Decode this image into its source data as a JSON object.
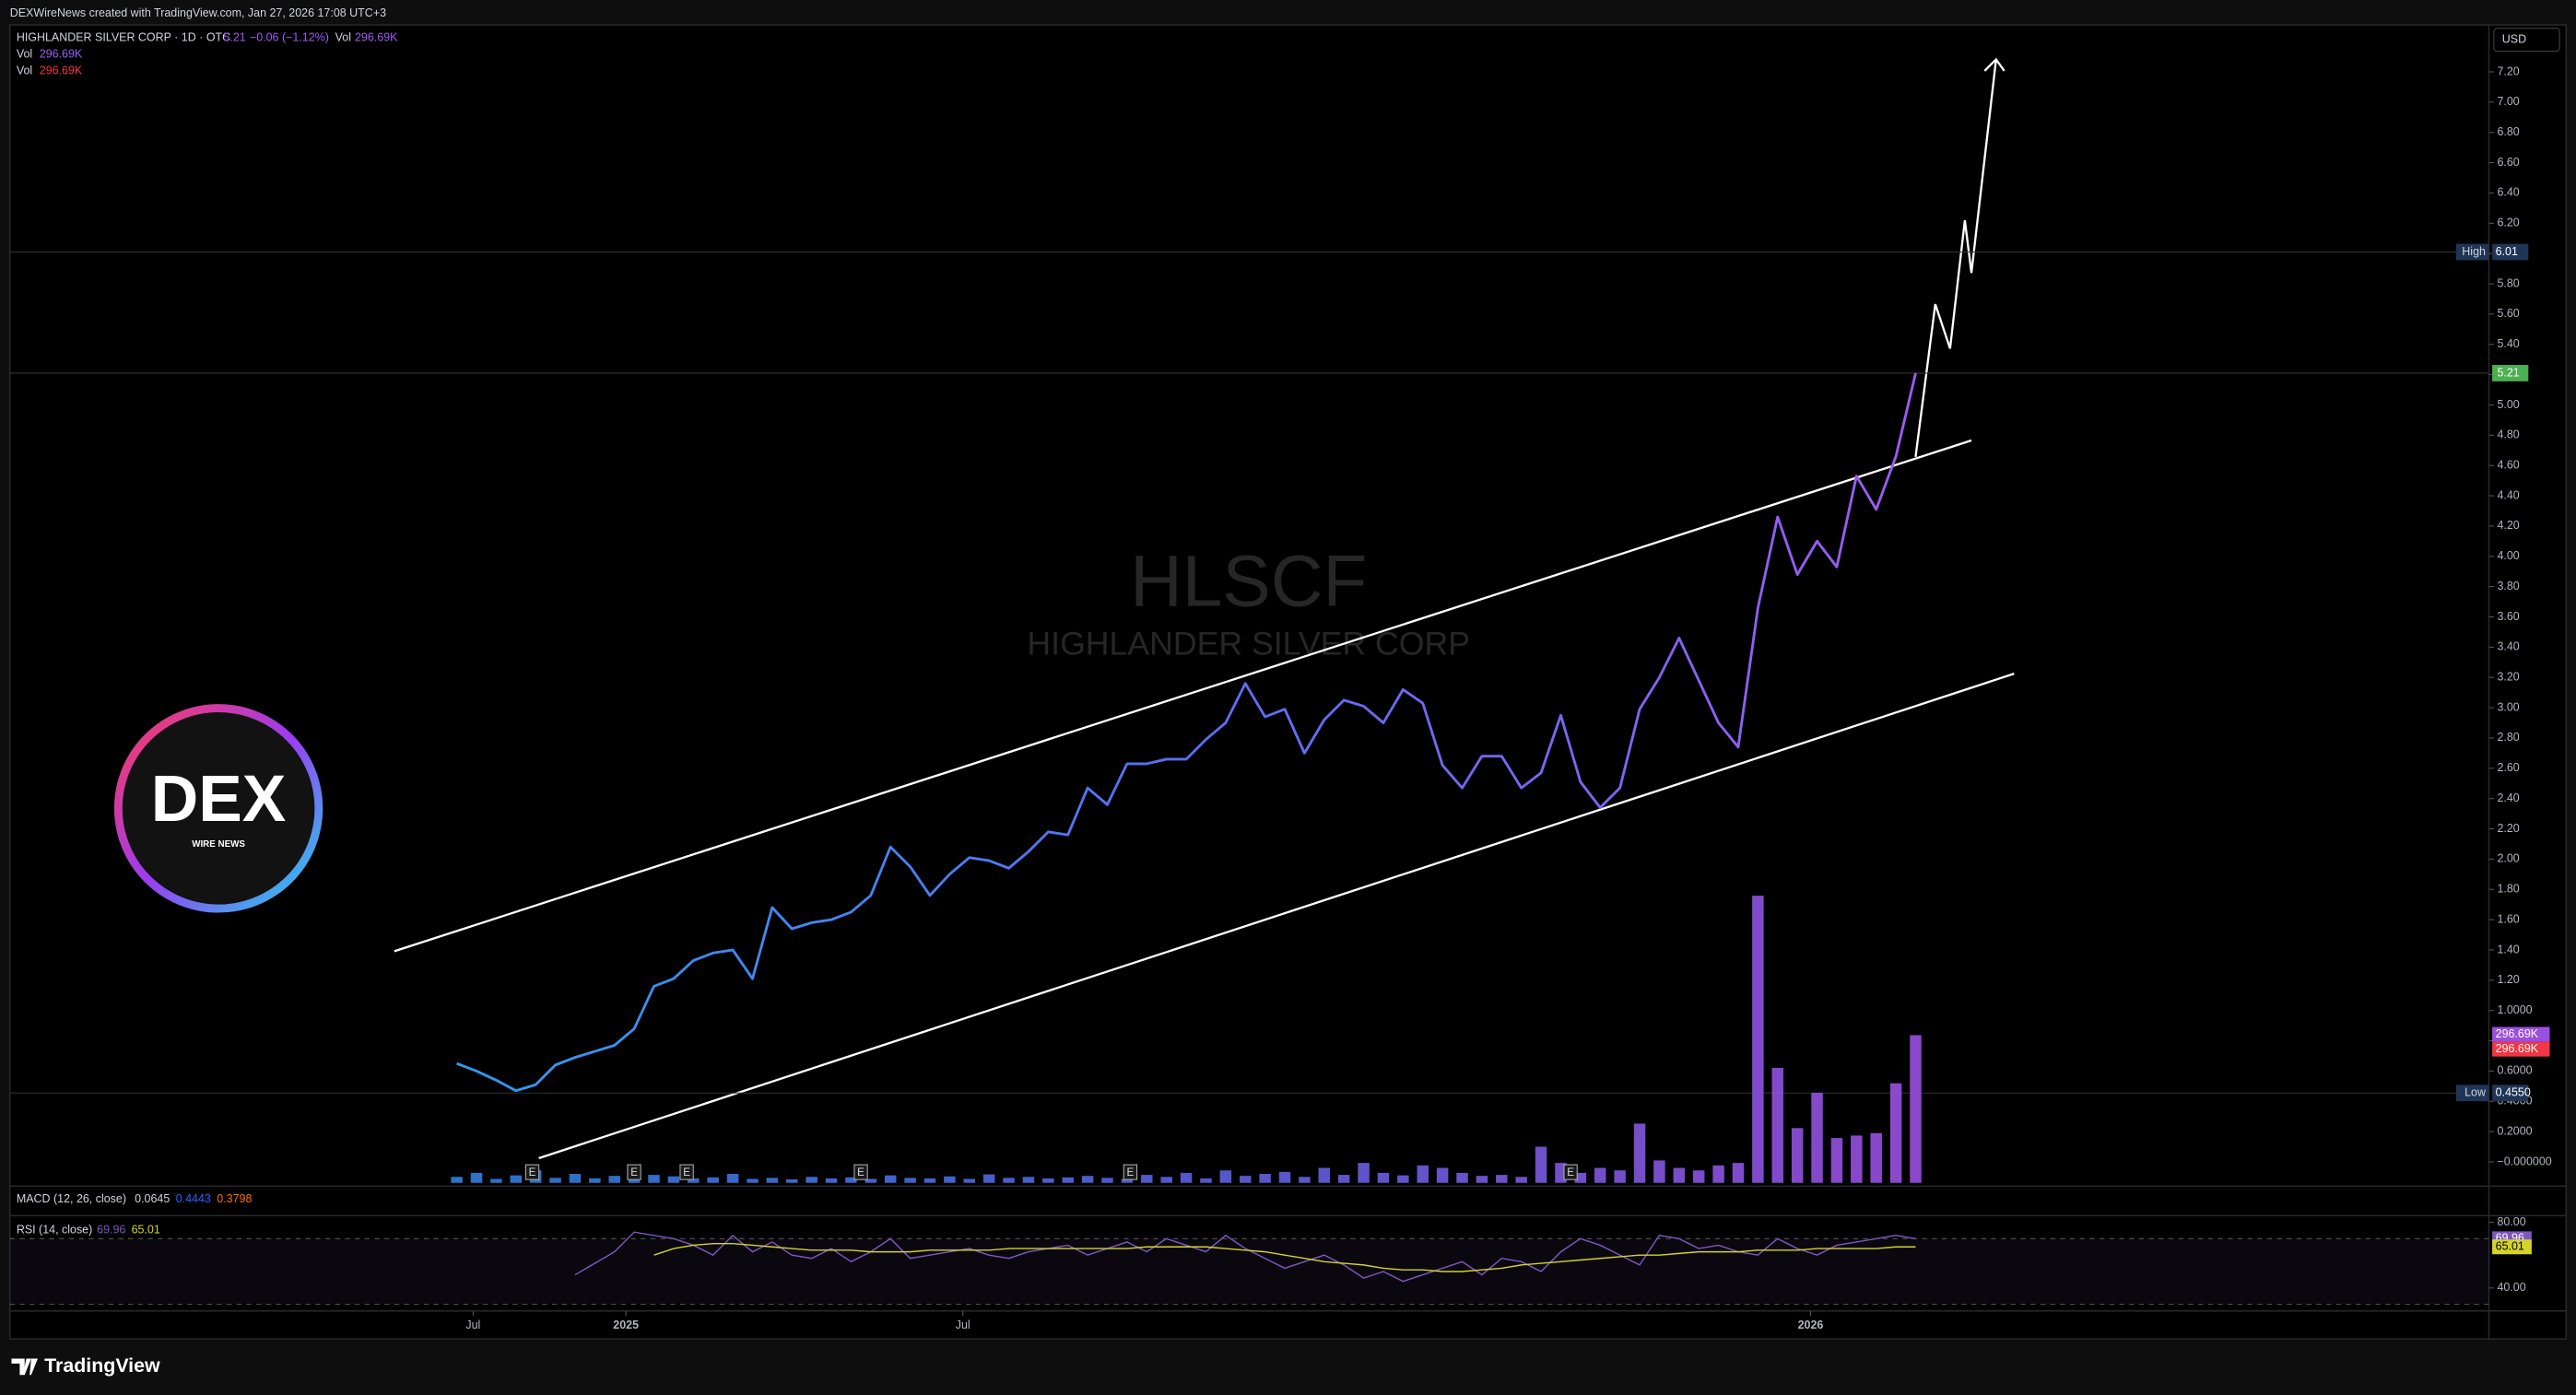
{
  "caption": "DEXWireNews created with TradingView.com, Jan 27, 2026 17:08 UTC+3",
  "watermark": {
    "symbol": "HLSCF",
    "name": "HIGHLANDER SILVER CORP"
  },
  "logo": {
    "title": "DEX",
    "subtitle": "WIRE NEWS"
  },
  "footer": "TradingView",
  "chart_data": [
    {
      "type": "line",
      "currency": "USD",
      "series": [
        {
          "name": "HIGHLANDER SILVER CORP · 1D · OTC",
          "change": "−0.06 (−1.12%)",
          "colors": [
            "#2f9bf0",
            "#5a6ef2",
            "#9d5cf2"
          ],
          "values": [
            0.65,
            0.6,
            0.54,
            0.47,
            0.51,
            0.64,
            0.69,
            0.73,
            0.77,
            0.88,
            1.16,
            1.21,
            1.33,
            1.38,
            1.4,
            1.21,
            1.68,
            1.54,
            1.58,
            1.6,
            1.65,
            1.76,
            2.08,
            1.95,
            1.76,
            1.9,
            2.01,
            1.99,
            1.94,
            2.05,
            2.18,
            2.16,
            2.47,
            2.36,
            2.63,
            2.63,
            2.66,
            2.66,
            2.79,
            2.9,
            3.16,
            2.94,
            2.99,
            2.7,
            2.92,
            3.05,
            3.01,
            2.9,
            3.12,
            3.03,
            2.62,
            2.47,
            2.68,
            2.68,
            2.47,
            2.57,
            2.95,
            2.51,
            2.34,
            2.47,
            2.99,
            3.2,
            3.46,
            3.18,
            2.9,
            2.74,
            3.66,
            4.26,
            3.88,
            4.1,
            3.93,
            4.53,
            4.31,
            4.66,
            5.21
          ]
        }
      ],
      "xlim": [
        -22.67,
        103.08
      ],
      "xticks": [
        {
          "value": 0.83,
          "label": "Jul"
        },
        {
          "value": 8.58,
          "label": "2025"
        },
        {
          "value": 25.67,
          "label": "Jul"
        },
        {
          "value": 68.67,
          "label": "2026"
        }
      ],
      "ylim": [
        -0.16,
        7.51
      ],
      "yticks": [
        {
          "value": 7.2,
          "label": "7.20"
        },
        {
          "value": 7,
          "label": "7.00"
        },
        {
          "value": 6.8,
          "label": "6.80"
        },
        {
          "value": 6.6,
          "label": "6.60"
        },
        {
          "value": 6.4,
          "label": "6.40"
        },
        {
          "value": 6.2,
          "label": "6.20"
        },
        {
          "value": 6,
          "label": "6.00"
        },
        {
          "value": 5.8,
          "label": "5.80"
        },
        {
          "value": 5.6,
          "label": "5.60"
        },
        {
          "value": 5.4,
          "label": "5.40"
        },
        {
          "value": 5.2,
          "label": "5.20"
        },
        {
          "value": 5,
          "label": "5.00"
        },
        {
          "value": 4.8,
          "label": "4.80"
        },
        {
          "value": 4.6,
          "label": "4.60"
        },
        {
          "value": 4.4,
          "label": "4.40"
        },
        {
          "value": 4.2,
          "label": "4.20"
        },
        {
          "value": 4,
          "label": "4.00"
        },
        {
          "value": 3.8,
          "label": "3.80"
        },
        {
          "value": 3.6,
          "label": "3.60"
        },
        {
          "value": 3.4,
          "label": "3.40"
        },
        {
          "value": 3.2,
          "label": "3.20"
        },
        {
          "value": 3,
          "label": "3.00"
        },
        {
          "value": 2.8,
          "label": "2.80"
        },
        {
          "value": 2.6,
          "label": "2.60"
        },
        {
          "value": 2.4,
          "label": "2.40"
        },
        {
          "value": 2.2,
          "label": "2.20"
        },
        {
          "value": 2,
          "label": "2.00"
        },
        {
          "value": 1.8,
          "label": "1.80"
        },
        {
          "value": 1.6,
          "label": "1.60"
        },
        {
          "value": 1.4,
          "label": "1.40"
        },
        {
          "value": 1.2,
          "label": "1.20"
        },
        {
          "value": 1,
          "label": "1.0000"
        },
        {
          "value": 0.8,
          "label": "0.8000"
        },
        {
          "value": 0.6,
          "label": "0.6000"
        },
        {
          "value": 0.4,
          "label": "0.4000"
        },
        {
          "value": 0.2,
          "label": "0.2000"
        },
        {
          "value": 0,
          "label": "−0.000000"
        }
      ],
      "high": {
        "label": "High",
        "value": 6.01
      },
      "low": {
        "label": "Low",
        "value": 0.455,
        "value_label": "0.4550"
      },
      "earnings_markers": [
        "E",
        "E",
        "E",
        "E",
        "E",
        "E"
      ]
    },
    {
      "type": "bar",
      "series": [
        {
          "name": "Vol",
          "colors": [
            "#2f7fe0",
            "#5a62e0",
            "#9b4fe0"
          ],
          "second_color": "#f23645",
          "values": [
            12000,
            20000,
            8000,
            15000,
            25000,
            10000,
            18000,
            9000,
            14000,
            22000,
            16000,
            13000,
            9000,
            11000,
            18000,
            8000,
            10000,
            7000,
            12000,
            9000,
            11000,
            8000,
            15000,
            10000,
            9000,
            13000,
            8000,
            17000,
            10000,
            12000,
            9000,
            11000,
            14000,
            10000,
            8000,
            16000,
            12000,
            20000,
            9000,
            25000,
            14000,
            18000,
            22000,
            12000,
            30000,
            16000,
            40000,
            20000,
            15000,
            35000,
            30000,
            20000,
            14000,
            16000,
            12000,
            72600,
            40000,
            20000,
            30000,
            25000,
            119000,
            45000,
            30000,
            25000,
            35000,
            40000,
            577000,
            231000,
            110000,
            181000,
            90000,
            95000,
            100000,
            200000,
            296690
          ],
          "value_labels": [
            null,
            null,
            null,
            null,
            null,
            null,
            null,
            null,
            null,
            null,
            null,
            null,
            null,
            null,
            null,
            null,
            null,
            null,
            null,
            null,
            null,
            null,
            null,
            null,
            null,
            null,
            null,
            null,
            null,
            null,
            null,
            null,
            null,
            null,
            null,
            null,
            null,
            null,
            null,
            null,
            null,
            null,
            null,
            null,
            null,
            null,
            null,
            null,
            null,
            null,
            null,
            null,
            null,
            null,
            null,
            null,
            null,
            null,
            null,
            null,
            null,
            null,
            null,
            null,
            null,
            null,
            null,
            null,
            null,
            null,
            null,
            null,
            null,
            null,
            "296.69K"
          ]
        }
      ],
      "ylim": [
        0,
        1650000
      ]
    },
    {
      "type": "readout",
      "title": "MACD (12, 26, close)",
      "values": [
        0.0645,
        0.4443,
        0.3798
      ],
      "colors": [
        "#d1d4dc",
        "#2962ff",
        "#ff6d00"
      ]
    },
    {
      "type": "line",
      "title": "RSI (14, close)",
      "series": [
        {
          "color": "#7e57c2",
          "values": [
            null,
            null,
            null,
            null,
            null,
            null,
            48,
            55,
            62,
            74,
            72,
            70,
            66,
            60,
            72,
            62,
            68,
            60,
            58,
            64,
            56,
            62,
            70,
            58,
            60,
            62,
            64,
            60,
            58,
            62,
            64,
            66,
            60,
            64,
            68,
            62,
            70,
            66,
            62,
            72,
            64,
            58,
            52,
            56,
            60,
            54,
            46,
            50,
            44,
            48,
            52,
            56,
            48,
            58,
            56,
            50,
            62,
            70,
            66,
            60,
            54,
            72,
            70,
            64,
            66,
            62,
            60,
            70,
            64,
            60,
            66,
            68,
            70,
            72,
            69.96
          ]
        },
        {
          "color": "#d4d42a",
          "values": [
            null,
            null,
            null,
            null,
            null,
            null,
            null,
            null,
            null,
            null,
            60,
            64,
            66,
            67,
            67,
            66,
            65,
            64,
            63,
            63,
            63,
            62,
            62,
            62,
            63,
            63,
            63,
            63,
            64,
            64,
            64,
            64,
            64,
            64,
            64,
            65,
            65,
            65,
            65,
            64,
            63,
            62,
            60,
            58,
            56,
            55,
            54,
            52,
            51,
            51,
            50,
            50,
            51,
            52,
            54,
            55,
            56,
            57,
            58,
            59,
            60,
            60,
            61,
            62,
            62,
            62,
            63,
            63,
            63,
            64,
            64,
            64,
            64,
            65,
            65.01
          ]
        }
      ],
      "ylim": [
        26,
        84
      ],
      "yticks": [
        {
          "value": 80,
          "label": "80.00"
        },
        {
          "value": 40,
          "label": "40.00"
        }
      ],
      "band": [
        30,
        70
      ]
    }
  ]
}
